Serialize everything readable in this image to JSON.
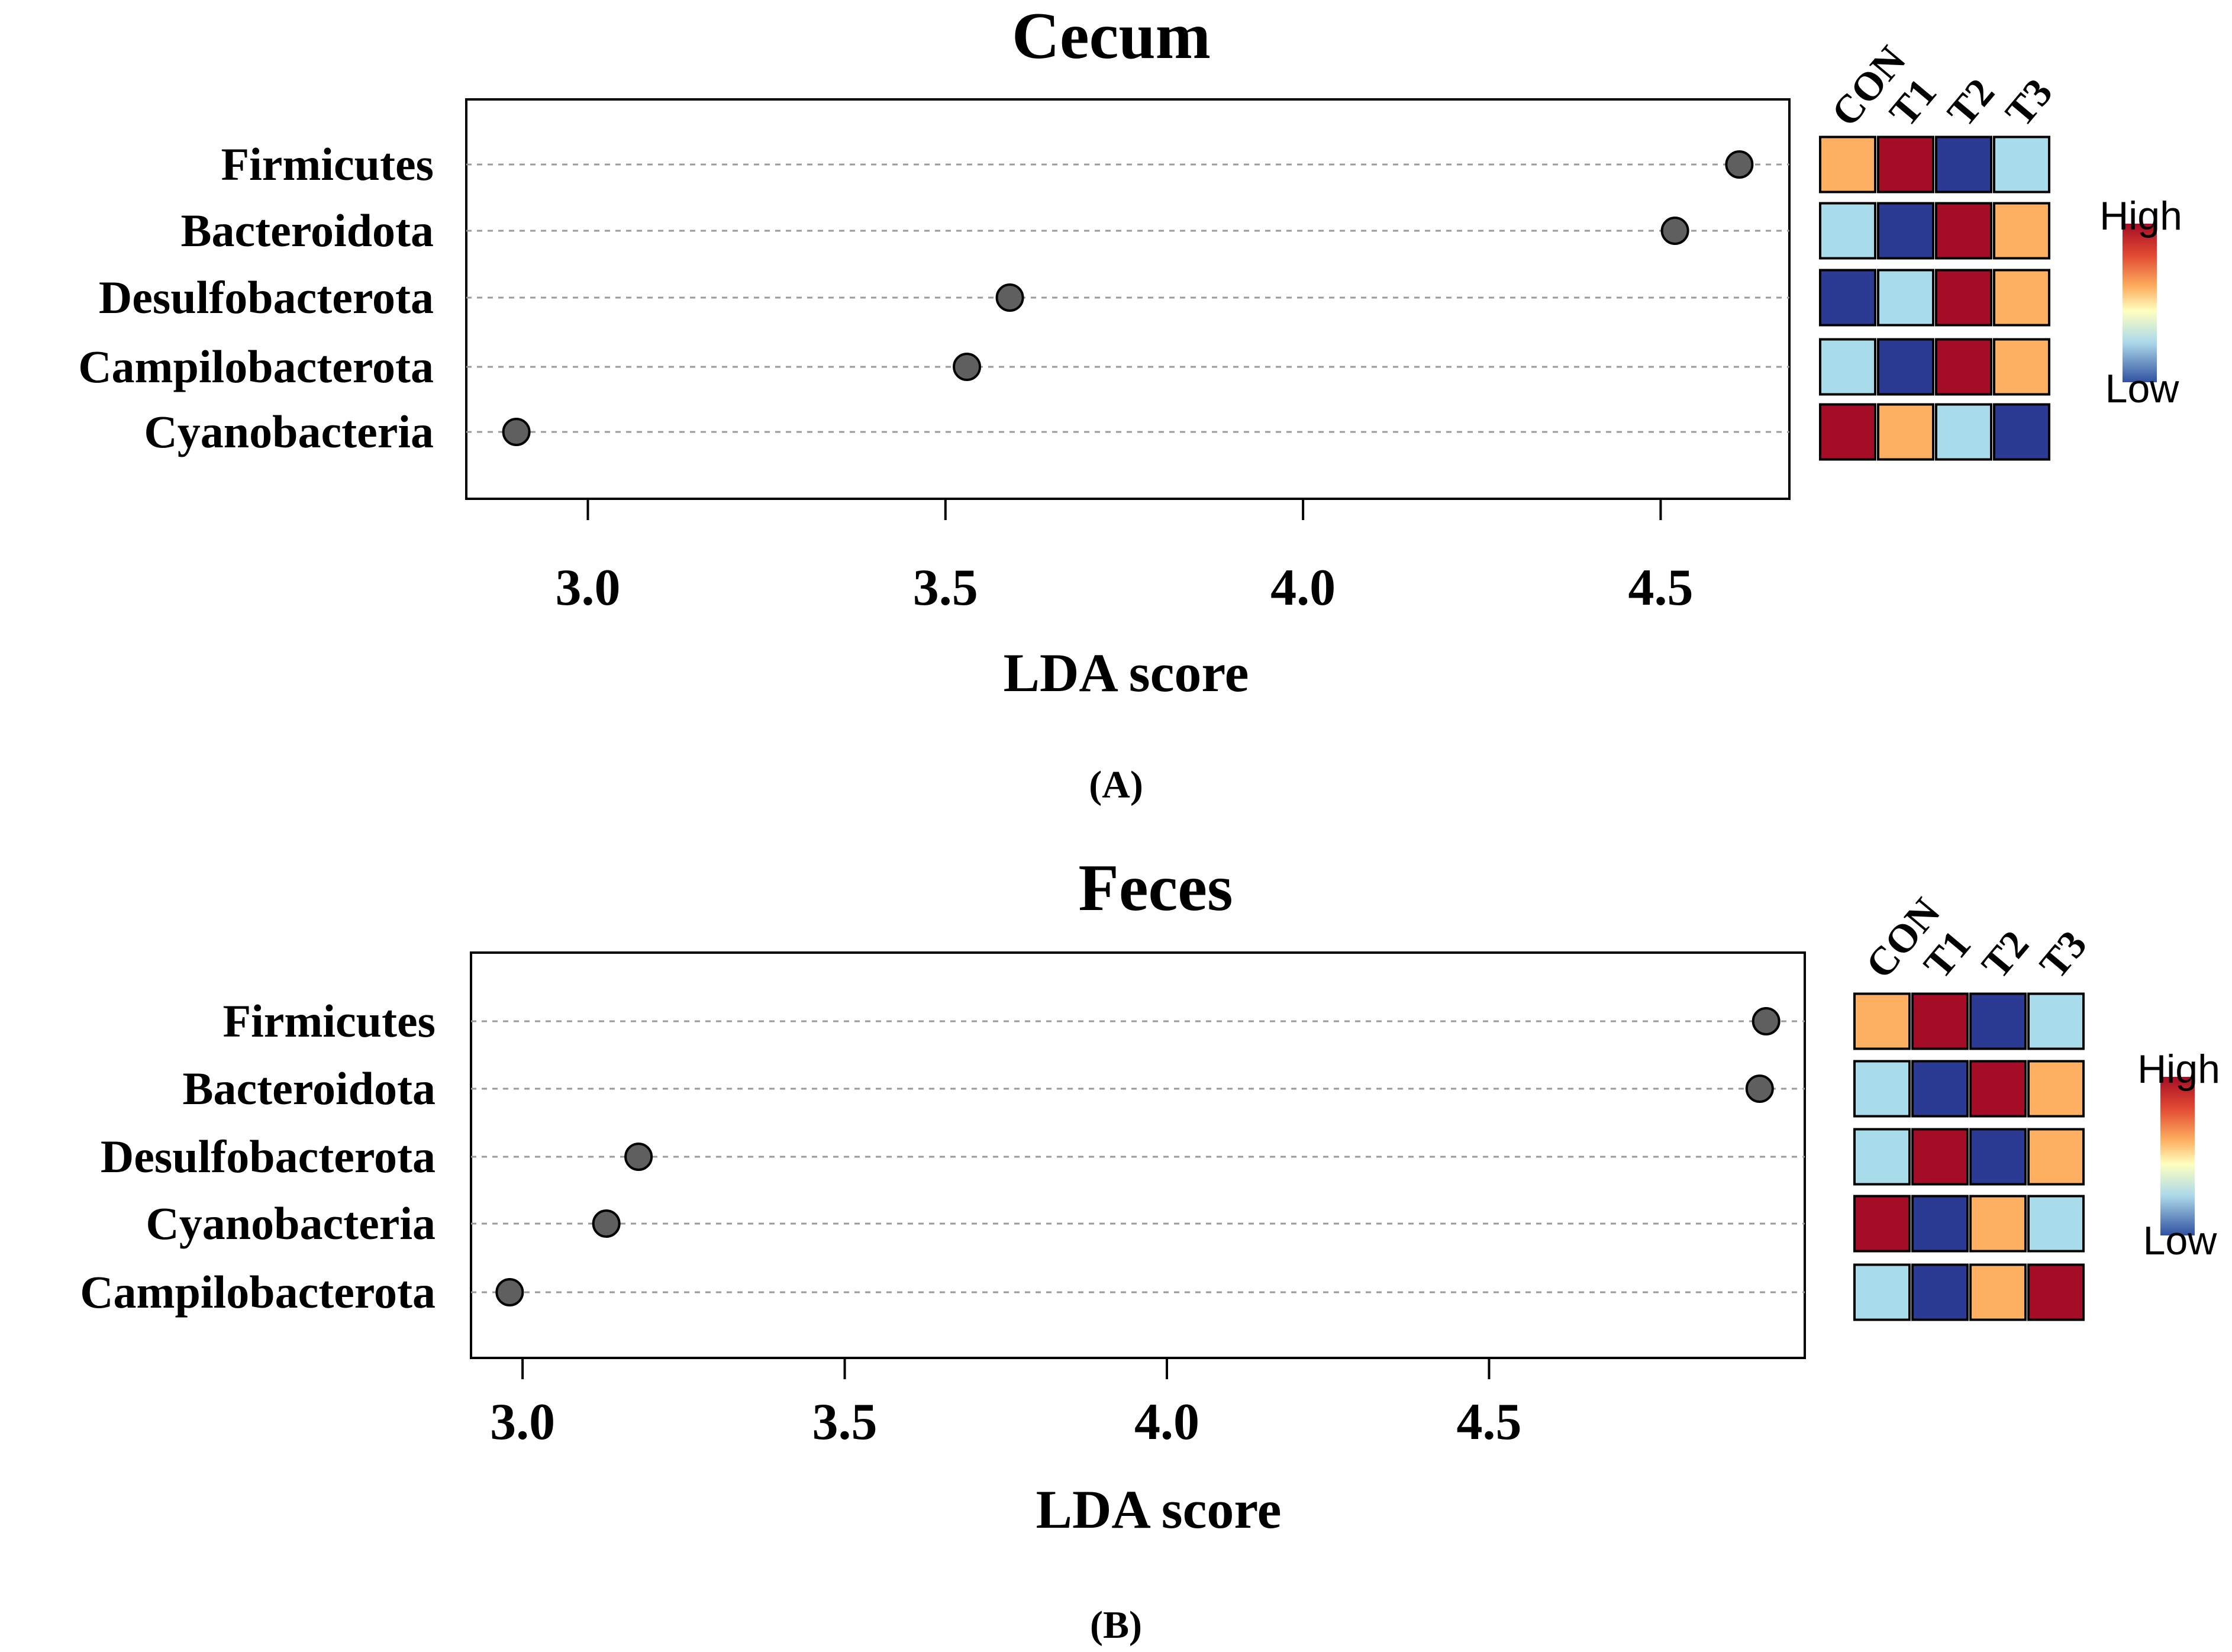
{
  "colors": {
    "point_fill": "#5f5f5f",
    "grid": "#9a9a9a",
    "cell_scale": {
      "1": "#2b3a93",
      "2": "#a9dcea",
      "3": "#fdb061",
      "4": "#a50d26"
    }
  },
  "chart_data": [
    {
      "type": "scatter",
      "panel": "A",
      "panel_label": "(A)",
      "title": "Cecum",
      "xlabel": "LDA score",
      "xlim": [
        2.83,
        4.68
      ],
      "xticks": [
        "3.0",
        "3.5",
        "4.0",
        "4.5"
      ],
      "categories": [
        "Firmicutes",
        "Bacteroidota",
        "Desulfobacterota",
        "Campilobacterota",
        "Cyanobacteria"
      ],
      "values": [
        4.61,
        4.52,
        3.59,
        3.53,
        2.9
      ],
      "groups": [
        "CON",
        "T1",
        "T2",
        "T3"
      ],
      "heatmap_levels": [
        [
          3,
          4,
          1,
          2
        ],
        [
          2,
          1,
          4,
          3
        ],
        [
          1,
          2,
          4,
          3
        ],
        [
          2,
          1,
          4,
          3
        ],
        [
          4,
          3,
          2,
          1
        ]
      ],
      "legend": {
        "high": "High",
        "low": "Low"
      }
    },
    {
      "type": "scatter",
      "panel": "B",
      "panel_label": "(B)",
      "title": "Feces",
      "xlabel": "LDA score",
      "xlim": [
        2.92,
        4.99
      ],
      "xticks": [
        "3.0",
        "3.5",
        "4.0",
        "4.5"
      ],
      "categories": [
        "Firmicutes",
        "Bacteroidota",
        "Desulfobacterota",
        "Cyanobacteria",
        "Campilobacterota"
      ],
      "values": [
        4.93,
        4.92,
        3.18,
        3.13,
        2.98
      ],
      "groups": [
        "CON",
        "T1",
        "T2",
        "T3"
      ],
      "heatmap_levels": [
        [
          3,
          4,
          1,
          2
        ],
        [
          2,
          1,
          4,
          3
        ],
        [
          2,
          4,
          1,
          3
        ],
        [
          4,
          1,
          3,
          2
        ],
        [
          2,
          1,
          3,
          4
        ]
      ],
      "legend": {
        "high": "High",
        "low": "Low"
      }
    }
  ]
}
